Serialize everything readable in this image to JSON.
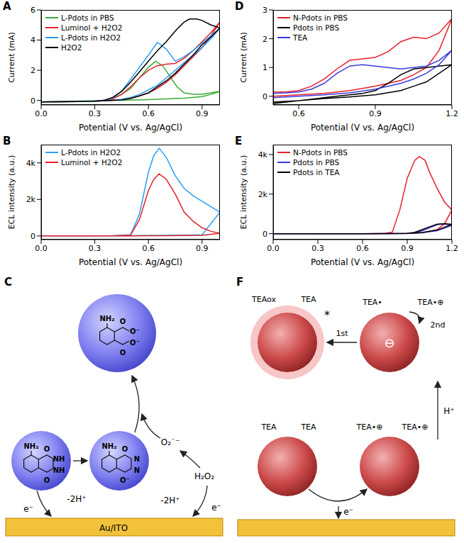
{
  "chart_data": [
    {
      "panel": "A",
      "type": "line",
      "x_label": "Potential (V vs. Ag/AgCl)",
      "y_label": "Current (mA)",
      "xlim": [
        0,
        1.0
      ],
      "xticks": [
        {
          "value": 0,
          "label": "0.0"
        },
        0.3,
        0.6,
        0.9
      ],
      "ylim": [
        -0.3,
        6
      ],
      "yticks": [
        0,
        2,
        4,
        6
      ],
      "grid": false,
      "legend": "upper left",
      "series": [
        {
          "name": "L-Pdots in PBS",
          "color": "#3aaa35",
          "x": [
            0,
            0.1,
            0.2,
            0.3,
            0.35,
            0.4,
            0.45,
            0.5,
            0.55,
            0.6,
            0.64,
            0.68,
            0.72,
            0.76,
            0.8,
            0.85,
            0.9,
            0.95,
            1.0,
            0.95,
            0.9,
            0.8,
            0.7,
            0.6,
            0.5,
            0.4,
            0.3,
            0.2,
            0.1,
            0
          ],
          "values": [
            -0.1,
            -0.1,
            -0.08,
            -0.05,
            0,
            0.15,
            0.4,
            0.8,
            1.5,
            2.2,
            2.6,
            2.3,
            1.6,
            0.9,
            0.5,
            0.4,
            0.4,
            0.5,
            0.6,
            0.4,
            0.25,
            0.15,
            0.1,
            0.05,
            0.02,
            0,
            -0.02,
            -0.05,
            -0.08,
            -0.1
          ]
        },
        {
          "name": "Luminol + H2O2",
          "color": "#e5202a",
          "x": [
            0,
            0.2,
            0.3,
            0.35,
            0.4,
            0.45,
            0.5,
            0.55,
            0.6,
            0.65,
            0.7,
            0.75,
            0.8,
            0.85,
            0.9,
            0.95,
            1.0,
            0.95,
            0.9,
            0.85,
            0.8,
            0.75,
            0.7,
            0.65,
            0.6,
            0.55,
            0.5,
            0.45,
            0.4,
            0.3,
            0.2,
            0
          ],
          "values": [
            -0.1,
            -0.08,
            -0.05,
            0,
            0.1,
            0.4,
            0.9,
            1.5,
            2.0,
            2.3,
            2.4,
            2.45,
            2.8,
            3.3,
            3.9,
            4.5,
            5.2,
            4.3,
            3.5,
            2.9,
            2.3,
            1.7,
            1.2,
            0.8,
            0.5,
            0.3,
            0.15,
            0.05,
            0,
            -0.05,
            -0.08,
            -0.1
          ]
        },
        {
          "name": "L-Pdots in H2O2",
          "color": "#2a9df4",
          "x": [
            0,
            0.2,
            0.3,
            0.35,
            0.4,
            0.45,
            0.5,
            0.55,
            0.6,
            0.65,
            0.7,
            0.75,
            0.8,
            0.85,
            0.9,
            0.95,
            1.0,
            0.95,
            0.9,
            0.85,
            0.8,
            0.75,
            0.7,
            0.65,
            0.6,
            0.55,
            0.5,
            0.45,
            0.4,
            0.3,
            0.2,
            0
          ],
          "values": [
            -0.1,
            -0.08,
            -0.05,
            0,
            0.15,
            0.6,
            1.4,
            2.2,
            3.0,
            3.85,
            3.4,
            2.6,
            2.9,
            3.3,
            3.8,
            4.3,
            4.8,
            4.1,
            3.5,
            3.0,
            2.5,
            2.0,
            1.5,
            1.0,
            0.7,
            0.4,
            0.2,
            0.08,
            0,
            -0.05,
            -0.08,
            -0.1
          ]
        },
        {
          "name": "H2O2",
          "color": "#000000",
          "x": [
            0,
            0.2,
            0.3,
            0.35,
            0.4,
            0.45,
            0.5,
            0.55,
            0.6,
            0.65,
            0.7,
            0.75,
            0.8,
            0.83,
            0.87,
            0.9,
            0.95,
            1.0,
            0.95,
            0.9,
            0.85,
            0.8,
            0.75,
            0.7,
            0.65,
            0.6,
            0.55,
            0.5,
            0.45,
            0.4,
            0.3,
            0
          ],
          "values": [
            -0.1,
            -0.08,
            -0.05,
            0,
            0.2,
            0.6,
            1.2,
            1.9,
            2.6,
            3.3,
            3.9,
            4.6,
            5.2,
            5.4,
            5.4,
            5.3,
            5.0,
            4.8,
            4.2,
            3.7,
            3.0,
            2.4,
            1.8,
            1.3,
            0.9,
            0.5,
            0.3,
            0.12,
            0.03,
            0,
            -0.05,
            -0.1
          ]
        }
      ]
    },
    {
      "panel": "B",
      "type": "line",
      "x_label": "Potential (V vs. Ag/AgCl)",
      "y_label": "ECL intensity (a.u.)",
      "xlim": [
        0,
        1.0
      ],
      "xticks": [
        {
          "value": 0,
          "label": "0.0"
        },
        0.3,
        0.6,
        0.9
      ],
      "ylim": [
        -200,
        5000
      ],
      "yticks": [
        0,
        {
          "value": 2000,
          "label": "2k"
        },
        {
          "value": 4000,
          "label": "4k"
        }
      ],
      "grid": false,
      "legend": "upper left",
      "series": [
        {
          "name": "L-Pdots in H2O2",
          "color": "#2a9df4",
          "x": [
            0,
            0.2,
            0.4,
            0.5,
            0.55,
            0.6,
            0.63,
            0.66,
            0.7,
            0.75,
            0.8,
            0.85,
            0.9,
            0.95,
            1.0,
            0.9,
            0.8,
            0.7,
            0.6,
            0.5,
            0.3,
            0
          ],
          "values": [
            0,
            0,
            10,
            60,
            1200,
            3500,
            4400,
            4800,
            4300,
            3300,
            2600,
            2200,
            1900,
            1600,
            1300,
            60,
            40,
            30,
            20,
            10,
            0,
            0
          ]
        },
        {
          "name": "Luminol + H2O2",
          "color": "#e5202a",
          "x": [
            0,
            0.2,
            0.4,
            0.5,
            0.55,
            0.6,
            0.63,
            0.66,
            0.7,
            0.75,
            0.8,
            0.85,
            0.9,
            0.95,
            1.0,
            0.9,
            0.8,
            0.7,
            0.6,
            0.5,
            0.3,
            0
          ],
          "values": [
            0,
            0,
            5,
            40,
            900,
            2500,
            3100,
            3400,
            3100,
            2300,
            1300,
            800,
            450,
            250,
            150,
            30,
            20,
            15,
            10,
            5,
            0,
            0
          ]
        }
      ]
    },
    {
      "panel": "D",
      "type": "line",
      "x_label": "Potential (V vs. Ag/AgCl)",
      "y_label": "Current (mA)",
      "xlim": [
        0.5,
        1.2
      ],
      "xticks": [
        0.6,
        0.9,
        1.2
      ],
      "ylim": [
        -0.3,
        3
      ],
      "yticks": [
        0,
        1,
        2,
        3
      ],
      "grid": false,
      "legend": "upper left",
      "series": [
        {
          "name": "N-Pdots in PBS",
          "color": "#e5202a",
          "x": [
            0.5,
            0.55,
            0.6,
            0.65,
            0.7,
            0.75,
            0.8,
            0.85,
            0.9,
            0.95,
            1.0,
            1.05,
            1.1,
            1.15,
            1.2,
            1.15,
            1.1,
            1.05,
            1.0,
            0.9,
            0.8,
            0.7,
            0.6,
            0.5
          ],
          "values": [
            0.15,
            0.15,
            0.2,
            0.35,
            0.6,
            0.95,
            1.25,
            1.3,
            1.35,
            1.55,
            1.9,
            2.05,
            2.0,
            2.2,
            2.7,
            1.6,
            1.0,
            0.75,
            0.55,
            0.35,
            0.2,
            0.1,
            0.05,
            0.0
          ]
        },
        {
          "name": "Pdots in PBS",
          "color": "#000000",
          "x": [
            0.5,
            0.55,
            0.6,
            0.65,
            0.7,
            0.75,
            0.8,
            0.85,
            0.9,
            0.95,
            1.0,
            1.05,
            1.1,
            1.15,
            1.2,
            1.15,
            1.1,
            1.05,
            1.0,
            0.9,
            0.8,
            0.7,
            0.6,
            0.5
          ],
          "values": [
            -0.25,
            -0.2,
            -0.15,
            -0.1,
            -0.05,
            0,
            0.05,
            0.1,
            0.2,
            0.45,
            0.75,
            0.95,
            1.0,
            1.05,
            1.1,
            0.8,
            0.5,
            0.35,
            0.2,
            0.05,
            -0.02,
            -0.08,
            -0.15,
            -0.2
          ]
        },
        {
          "name": "TEA",
          "color": "#3b3bdf",
          "x": [
            0.5,
            0.55,
            0.6,
            0.65,
            0.7,
            0.75,
            0.8,
            0.85,
            0.9,
            0.95,
            1.0,
            1.05,
            1.1,
            1.15,
            1.2,
            1.15,
            1.1,
            1.05,
            1.0,
            0.9,
            0.8,
            0.7,
            0.6,
            0.5
          ],
          "values": [
            0.1,
            0.12,
            0.15,
            0.25,
            0.45,
            0.8,
            1.05,
            1.1,
            1.05,
            1.0,
            0.95,
            1.0,
            1.05,
            1.25,
            1.6,
            1.1,
            0.8,
            0.6,
            0.45,
            0.25,
            0.12,
            0.05,
            0.0,
            -0.05
          ]
        }
      ]
    },
    {
      "panel": "E",
      "type": "line",
      "x_label": "Potential (V vs. Ag/AgCl)",
      "y_label": "ECL intensity (a.u.)",
      "xlim": [
        0,
        1.2
      ],
      "xticks": [
        {
          "value": 0,
          "label": "0.0"
        },
        0.3,
        0.6,
        0.9,
        1.2
      ],
      "ylim": [
        -300,
        4500
      ],
      "yticks": [
        0,
        {
          "value": 2000,
          "label": "2k"
        },
        {
          "value": 4000,
          "label": "4k"
        }
      ],
      "grid": false,
      "legend": "upper left",
      "series": [
        {
          "name": "N-Pdots in PBS",
          "color": "#e5202a",
          "x": [
            0,
            0.3,
            0.6,
            0.75,
            0.8,
            0.85,
            0.9,
            0.95,
            0.98,
            1.02,
            1.05,
            1.1,
            1.15,
            1.2,
            1.15,
            1.1,
            1.0,
            0.9,
            0.6,
            0.3,
            0
          ],
          "values": [
            0,
            0,
            0,
            10,
            80,
            1200,
            2800,
            3700,
            3900,
            3700,
            3100,
            2300,
            1600,
            1200,
            500,
            200,
            40,
            10,
            0,
            0,
            0
          ]
        },
        {
          "name": "Pdots in PBS",
          "color": "#3b3bdf",
          "x": [
            0,
            0.3,
            0.6,
            0.9,
            0.95,
            1.0,
            1.05,
            1.1,
            1.15,
            1.2,
            1.1,
            1.0,
            0.9,
            0.6,
            0.3,
            0
          ],
          "values": [
            0,
            0,
            0,
            5,
            40,
            150,
            300,
            450,
            500,
            420,
            150,
            50,
            10,
            0,
            0,
            0
          ]
        },
        {
          "name": "Pdots in TEA",
          "color": "#000000",
          "x": [
            0,
            0.3,
            0.6,
            0.9,
            0.95,
            1.0,
            1.05,
            1.1,
            1.15,
            1.2,
            1.1,
            1.0,
            0.9,
            0.6,
            0.3,
            0
          ],
          "values": [
            0,
            0,
            0,
            10,
            70,
            200,
            350,
            480,
            510,
            470,
            180,
            60,
            15,
            0,
            0,
            0
          ]
        }
      ]
    }
  ],
  "diagrams": [
    {
      "panel": "C",
      "electrode": "Au/ITO",
      "electron": "e⁻",
      "proton_loss": "-2H⁺",
      "superoxide": "O₂˙⁻",
      "oxidant": "H₂O₂",
      "luminol": [
        "NH₂",
        "O",
        "NH",
        "NH",
        "O"
      ],
      "intermediate": [
        "NH₂",
        "O",
        "N",
        "N",
        "O⁻"
      ],
      "product": [
        "NH₂",
        "O",
        "O⁻",
        "O⁻",
        "O"
      ]
    },
    {
      "panel": "F",
      "excited": [
        "TEAox",
        "TEA"
      ],
      "excited_mark": "*",
      "charged": [
        "TEA•",
        "TEA•⊕"
      ],
      "charge": "⊖",
      "steps": [
        "1st",
        "2nd"
      ],
      "proton": "H⁺",
      "ground": [
        "TEA",
        "TEA"
      ],
      "oxidized": [
        "TEA•⊕",
        "TEA•⊕"
      ],
      "electron": "e⁻"
    }
  ]
}
